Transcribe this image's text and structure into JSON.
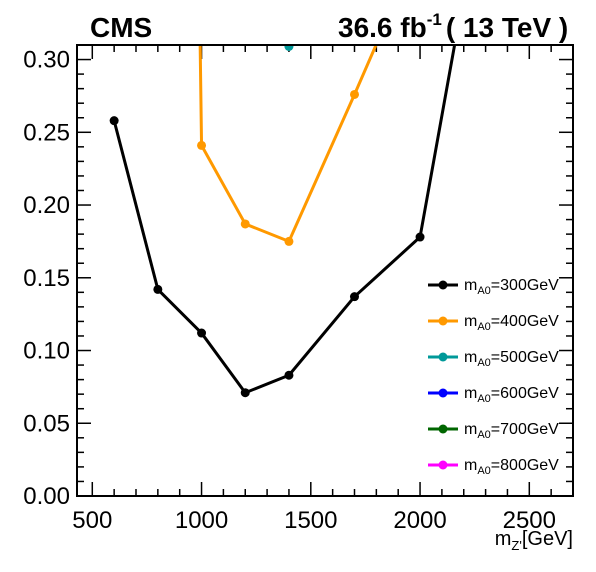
{
  "chart_data": {
    "type": "line",
    "experiment": "CMS",
    "lumi": {
      "value": "36.6 fb",
      "exp": "-1",
      "energy": "( 13 TeV )"
    },
    "xlabel": {
      "main": "m",
      "sub": "Z'",
      "unit": "[GeV]"
    },
    "ylabel": "",
    "xlim": [
      430,
      2700
    ],
    "ylim": [
      0,
      0.31
    ],
    "xticks": [
      500,
      1000,
      1500,
      2000,
      2500
    ],
    "xtick_labels": [
      "500",
      "1000",
      "1500",
      "2000",
      "2500"
    ],
    "yticks": [
      0,
      0.05,
      0.1,
      0.15,
      0.2,
      0.25,
      0.3
    ],
    "ytick_labels": [
      "0.00",
      "0.05",
      "0.10",
      "0.15",
      "0.20",
      "0.25",
      "0.30"
    ],
    "legend_position": "right",
    "series": [
      {
        "name_main": "m",
        "name_sub": "A0",
        "name_rest": "=300GeV",
        "color": "#000000",
        "x": [
          600,
          800,
          1000,
          1200,
          1400,
          1700,
          2000,
          2200
        ],
        "y": [
          0.258,
          0.142,
          0.112,
          0.071,
          0.083,
          0.137,
          0.178,
          0.345
        ]
      },
      {
        "name_main": "m",
        "name_sub": "A0",
        "name_rest": "=400GeV",
        "color": "#ff9900",
        "x": [
          990,
          1000,
          1200,
          1400,
          1700,
          1900
        ],
        "y": [
          0.35,
          0.241,
          0.187,
          0.175,
          0.276,
          0.345
        ]
      },
      {
        "name_main": "m",
        "name_sub": "A0",
        "name_rest": "=500GeV",
        "color": "#009999",
        "x": [
          1400
        ],
        "y": [
          0.309
        ]
      },
      {
        "name_main": "m",
        "name_sub": "A0",
        "name_rest": "=600GeV",
        "color": "#0000ff",
        "x": [],
        "y": []
      },
      {
        "name_main": "m",
        "name_sub": "A0",
        "name_rest": "=700GeV",
        "color": "#006600",
        "x": [],
        "y": []
      },
      {
        "name_main": "m",
        "name_sub": "A0",
        "name_rest": "=800GeV",
        "color": "#ff00ff",
        "x": [],
        "y": []
      }
    ]
  }
}
